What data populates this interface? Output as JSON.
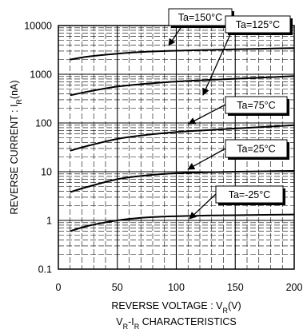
{
  "chart_data": {
    "type": "line",
    "title": "VR-IR CHARACTERISTICS",
    "xlabel": "REVERSE VOLTAGE : VR(V)",
    "ylabel": "REVERSE CURRENT : IR(nA)",
    "x_scale": "linear",
    "y_scale": "log",
    "xlim": [
      0,
      200
    ],
    "ylim": [
      0.1,
      10000
    ],
    "x_ticks": [
      0,
      50,
      100,
      150,
      200
    ],
    "y_ticks": [
      0.1,
      1,
      10,
      100,
      1000,
      10000
    ],
    "x_tick_labels": [
      "0",
      "50",
      "100",
      "150",
      "200"
    ],
    "y_tick_labels": [
      "0.1",
      "1",
      "10",
      "100",
      "1000",
      "10000"
    ],
    "grid": true,
    "series": [
      {
        "name": "Ta=150°C",
        "x": [
          10,
          25,
          50,
          75,
          100,
          125,
          150,
          175,
          200
        ],
        "y": [
          2000,
          2300,
          2650,
          2900,
          3050,
          3150,
          3250,
          3350,
          3450
        ]
      },
      {
        "name": "Ta=125°C",
        "x": [
          10,
          25,
          50,
          75,
          100,
          125,
          150,
          175,
          200
        ],
        "y": [
          370,
          440,
          560,
          640,
          710,
          760,
          810,
          860,
          920
        ]
      },
      {
        "name": "Ta=75°C",
        "x": [
          10,
          25,
          50,
          75,
          100,
          125,
          150,
          175,
          200
        ],
        "y": [
          27,
          34,
          47,
          57,
          65,
          71,
          77,
          83,
          90
        ]
      },
      {
        "name": "Ta=25°C",
        "x": [
          10,
          25,
          50,
          75,
          100,
          125,
          150,
          175,
          200
        ],
        "y": [
          3.8,
          4.9,
          7.0,
          8.4,
          9.3,
          9.7,
          10,
          10.2,
          10.4
        ]
      },
      {
        "name": "Ta=-25°C",
        "x": [
          10,
          25,
          50,
          75,
          100,
          125,
          150,
          175,
          200
        ],
        "y": [
          0.6,
          0.77,
          1.0,
          1.15,
          1.22,
          1.26,
          1.28,
          1.3,
          1.32
        ]
      }
    ]
  }
}
